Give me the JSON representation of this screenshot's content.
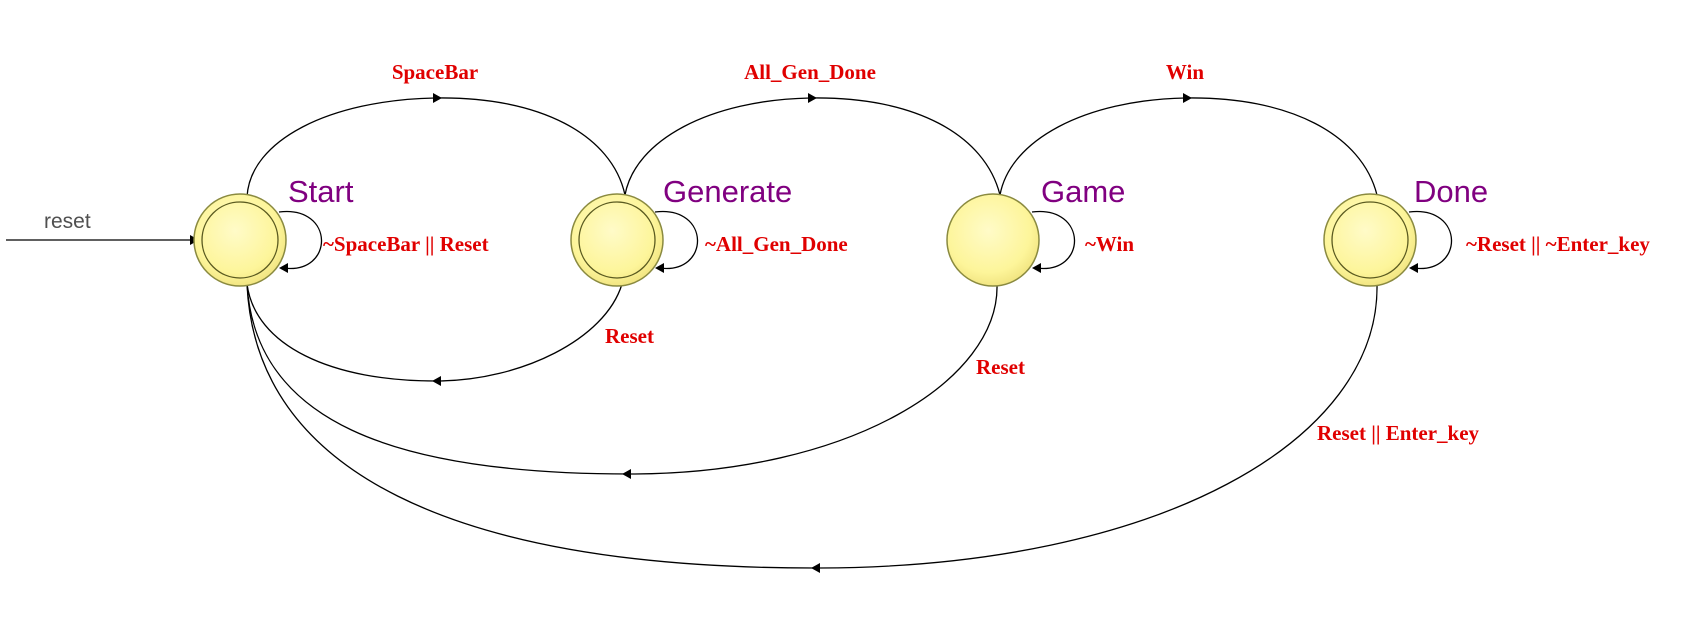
{
  "diagram": {
    "type": "state-machine",
    "colors": {
      "state_fill": "#fdf59a",
      "state_stroke": "#8a8a40",
      "state_label": "#800080",
      "condition_label": "#e00000",
      "edge": "#000000",
      "reset_label": "#505050"
    },
    "initial": {
      "label": "reset",
      "target": "start"
    },
    "states": [
      {
        "id": "start",
        "name": "Start",
        "accepting": true
      },
      {
        "id": "generate",
        "name": "Generate",
        "accepting": true
      },
      {
        "id": "game",
        "name": "Game",
        "accepting": false
      },
      {
        "id": "done",
        "name": "Done",
        "accepting": true
      }
    ],
    "transitions": [
      {
        "id": "start-to-generate",
        "from": "start",
        "to": "generate",
        "label": "SpaceBar"
      },
      {
        "id": "generate-to-game",
        "from": "generate",
        "to": "game",
        "label": "All_Gen_Done"
      },
      {
        "id": "game-to-done",
        "from": "game",
        "to": "done",
        "label": "Win"
      },
      {
        "id": "start-self",
        "from": "start",
        "to": "start",
        "label": "~SpaceBar || Reset"
      },
      {
        "id": "generate-self",
        "from": "generate",
        "to": "generate",
        "label": "~All_Gen_Done"
      },
      {
        "id": "game-self",
        "from": "game",
        "to": "game",
        "label": "~Win"
      },
      {
        "id": "done-self",
        "from": "done",
        "to": "done",
        "label": "~Reset || ~Enter_key"
      },
      {
        "id": "generate-to-start",
        "from": "generate",
        "to": "start",
        "label": "Reset"
      },
      {
        "id": "game-to-start",
        "from": "game",
        "to": "start",
        "label": "Reset"
      },
      {
        "id": "done-to-start",
        "from": "done",
        "to": "start",
        "label": "Reset || Enter_key"
      }
    ]
  }
}
